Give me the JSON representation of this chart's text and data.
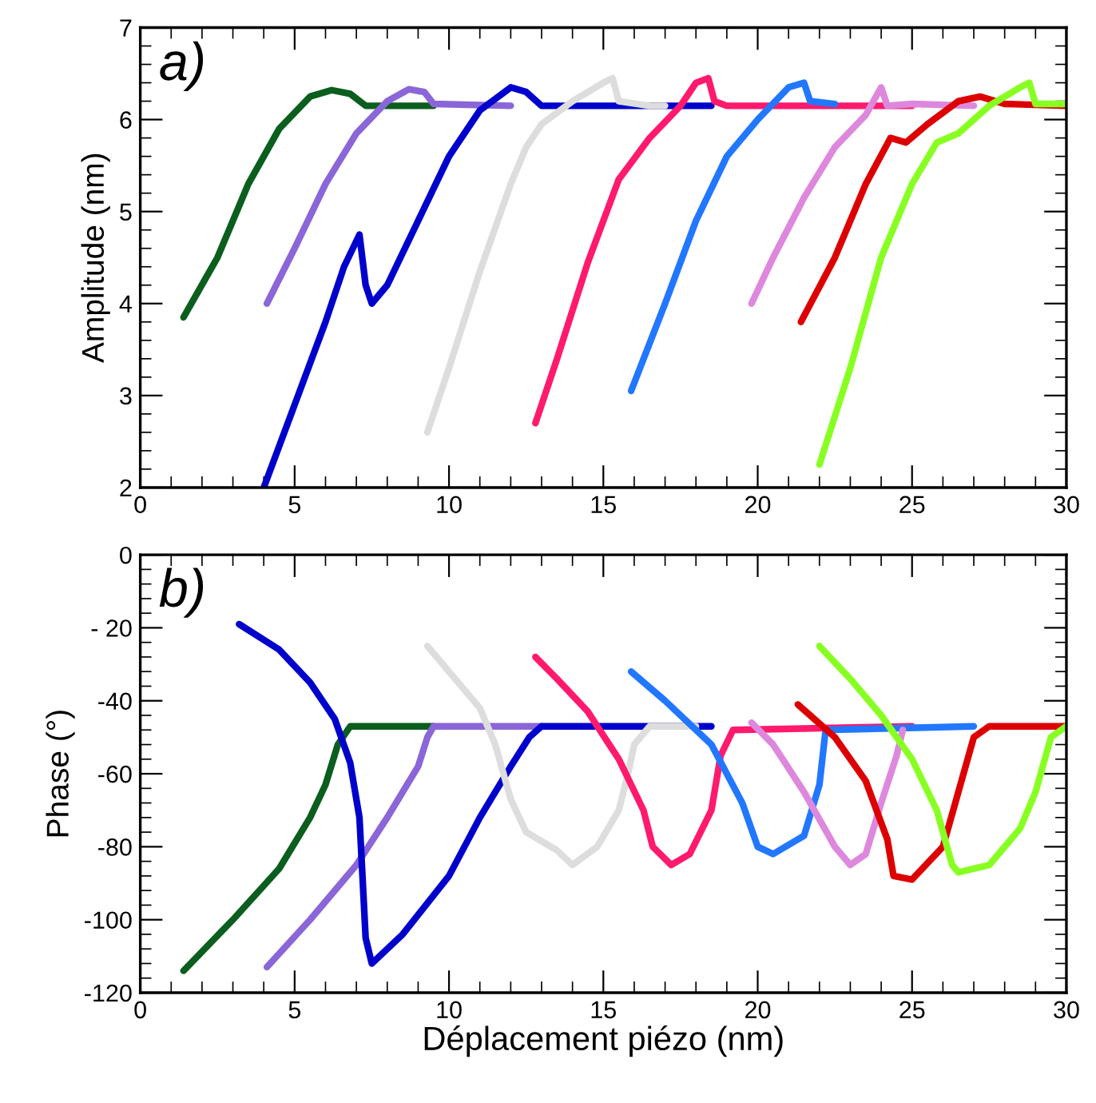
{
  "chart_data": [
    {
      "type": "line",
      "ylabel": "Amplitude (nm)",
      "annotations": [
        "a)"
      ],
      "xlim": [
        0,
        30
      ],
      "ylim": [
        2,
        7
      ],
      "xticks": [
        0,
        5,
        10,
        15,
        20,
        25,
        30
      ],
      "yticks": [
        2,
        3,
        4,
        5,
        6,
        7
      ],
      "grid": false,
      "legend": false,
      "marker": "none",
      "line_style": "solid",
      "series": [
        {
          "color": "#0b5e1e",
          "x": [
            1.4,
            2.5,
            3.5,
            4.5,
            5.5,
            6.2,
            6.8,
            7.3,
            8.2,
            9.5
          ],
          "values": [
            3.85,
            4.5,
            5.3,
            5.9,
            6.25,
            6.32,
            6.28,
            6.15,
            6.15,
            6.15
          ]
        },
        {
          "color": "#8a66d8",
          "x": [
            4.1,
            5,
            6,
            7,
            8,
            8.7,
            9.2,
            9.5,
            12
          ],
          "values": [
            4.0,
            4.6,
            5.3,
            5.85,
            6.2,
            6.33,
            6.3,
            6.17,
            6.15
          ]
        },
        {
          "color": "#0000cc",
          "x": [
            4.0,
            5,
            6,
            6.6,
            7.1,
            7.3,
            7.5,
            8,
            9,
            10,
            11,
            12,
            12.5,
            13,
            18.5
          ],
          "values": [
            2.0,
            2.9,
            3.8,
            4.4,
            4.75,
            4.2,
            4.0,
            4.2,
            4.9,
            5.6,
            6.1,
            6.35,
            6.3,
            6.15,
            6.15
          ]
        },
        {
          "color": "#dddddd",
          "x": [
            9.3,
            10,
            11,
            12,
            12.5,
            13,
            14,
            15,
            15.3,
            15.5,
            16.5,
            17
          ],
          "values": [
            2.6,
            3.3,
            4.35,
            5.3,
            5.7,
            5.95,
            6.2,
            6.4,
            6.45,
            6.2,
            6.15,
            6.15
          ]
        },
        {
          "color": "#ff1a6e",
          "x": [
            12.8,
            13.5,
            14.5,
            15.5,
            16.5,
            17.5,
            18,
            18.4,
            18.6,
            19,
            25
          ],
          "values": [
            2.7,
            3.4,
            4.45,
            5.35,
            5.8,
            6.15,
            6.4,
            6.45,
            6.2,
            6.15,
            6.15
          ]
        },
        {
          "color": "#2277ff",
          "x": [
            15.9,
            17,
            18,
            19,
            20,
            21,
            21.5,
            21.7,
            22.5
          ],
          "values": [
            3.05,
            4.0,
            4.9,
            5.6,
            6.0,
            6.35,
            6.4,
            6.2,
            6.17
          ]
        },
        {
          "color": "#dd88dd",
          "x": [
            19.8,
            20.5,
            21.5,
            22.5,
            23.5,
            24,
            24.2,
            25,
            27
          ],
          "values": [
            4.0,
            4.5,
            5.15,
            5.7,
            6.05,
            6.35,
            6.15,
            6.17,
            6.15
          ]
        },
        {
          "color": "#dd0000",
          "x": [
            21.4,
            22.5,
            23.5,
            24.3,
            24.8,
            25.5,
            26.5,
            27.2,
            28,
            30
          ],
          "values": [
            3.8,
            4.5,
            5.3,
            5.8,
            5.75,
            5.95,
            6.2,
            6.25,
            6.17,
            6.15
          ]
        },
        {
          "color": "#88ff22",
          "x": [
            22.0,
            23,
            24,
            25,
            25.8,
            26.5,
            27.5,
            28.5,
            28.8,
            29,
            30
          ],
          "values": [
            2.25,
            3.3,
            4.5,
            5.3,
            5.75,
            5.85,
            6.15,
            6.35,
            6.4,
            6.17,
            6.17
          ]
        }
      ]
    },
    {
      "type": "line",
      "xlabel": "Déplacement piézo (nm)",
      "ylabel": "Phase (°)",
      "annotations": [
        "b)"
      ],
      "xlim": [
        0,
        30
      ],
      "ylim": [
        -120,
        0
      ],
      "xticks": [
        0,
        5,
        10,
        15,
        20,
        25,
        30
      ],
      "yticks": [
        0,
        {
          "value": -20,
          "label": "- 20"
        },
        {
          "value": -40,
          "label": "-40"
        },
        {
          "value": -60,
          "label": "-60"
        },
        {
          "value": -80,
          "label": "-80"
        },
        {
          "value": -100,
          "label": "-100"
        },
        {
          "value": -120,
          "label": "-120"
        }
      ],
      "grid": false,
      "legend": false,
      "marker": "none",
      "line_style": "solid",
      "series": [
        {
          "color": "#0b5e1e",
          "x": [
            1.4,
            3,
            4.5,
            5.5,
            6,
            6.4,
            6.8,
            9.5
          ],
          "values": [
            -114,
            -100,
            -86,
            -72,
            -63,
            -52,
            -47,
            -47
          ]
        },
        {
          "color": "#8a66d8",
          "x": [
            4.1,
            5.5,
            7,
            8,
            9,
            9.3,
            9.5,
            13
          ],
          "values": [
            -113,
            -100,
            -85,
            -72,
            -58,
            -50,
            -47,
            -47
          ]
        },
        {
          "color": "#0000cc",
          "x": [
            3.2,
            4.5,
            5.5,
            6.3,
            6.8,
            7.1,
            7.3,
            7.5,
            8.5,
            10,
            11,
            12,
            12.6,
            13,
            18.5
          ],
          "values": [
            -19,
            -26,
            -35,
            -45,
            -57,
            -72,
            -105,
            -112,
            -104,
            -88,
            -72,
            -58,
            -50,
            -47,
            -47
          ]
        },
        {
          "color": "#dddddd",
          "x": [
            9.3,
            10,
            11,
            11.5,
            12,
            12.5,
            13.5,
            14,
            14.8,
            15.5,
            15.8,
            16,
            16.5,
            18
          ],
          "values": [
            -25,
            -32,
            -42,
            -52,
            -67,
            -76,
            -81,
            -85,
            -80,
            -70,
            -60,
            -52,
            -47,
            -47
          ]
        },
        {
          "color": "#ff1a6e",
          "x": [
            12.8,
            13.5,
            14.5,
            15.5,
            16.3,
            16.6,
            17.2,
            17.8,
            18.5,
            18.8,
            19.2,
            25
          ],
          "values": [
            -28,
            -34,
            -43,
            -56,
            -70,
            -80,
            -85,
            -82,
            -70,
            -55,
            -48,
            -47
          ]
        },
        {
          "color": "#2277ff",
          "x": [
            15.9,
            17,
            18.5,
            19.5,
            20,
            20.5,
            21.5,
            22,
            22.2,
            27
          ],
          "values": [
            -32,
            -40,
            -52,
            -68,
            -80,
            -82,
            -77,
            -63,
            -48,
            -47
          ]
        },
        {
          "color": "#dd88dd",
          "x": [
            19.8,
            20.5,
            21.5,
            22.5,
            23,
            23.5,
            24,
            24.5,
            24.7
          ],
          "values": [
            -46,
            -52,
            -65,
            -80,
            -85,
            -82,
            -68,
            -55,
            -48
          ]
        },
        {
          "color": "#dd0000",
          "x": [
            21.3,
            22.5,
            23.5,
            24.2,
            24.4,
            25,
            26,
            26.5,
            27,
            27.5,
            30
          ],
          "values": [
            -41,
            -50,
            -62,
            -78,
            -88,
            -89,
            -80,
            -65,
            -50,
            -47,
            -47
          ]
        },
        {
          "color": "#88ff22",
          "x": [
            22.0,
            23,
            24,
            25,
            25.8,
            26.3,
            26.5,
            27.5,
            28.5,
            29,
            29.5,
            30
          ],
          "values": [
            -25,
            -34,
            -44,
            -56,
            -70,
            -85,
            -87,
            -85,
            -75,
            -65,
            -50,
            -47
          ]
        }
      ]
    }
  ]
}
